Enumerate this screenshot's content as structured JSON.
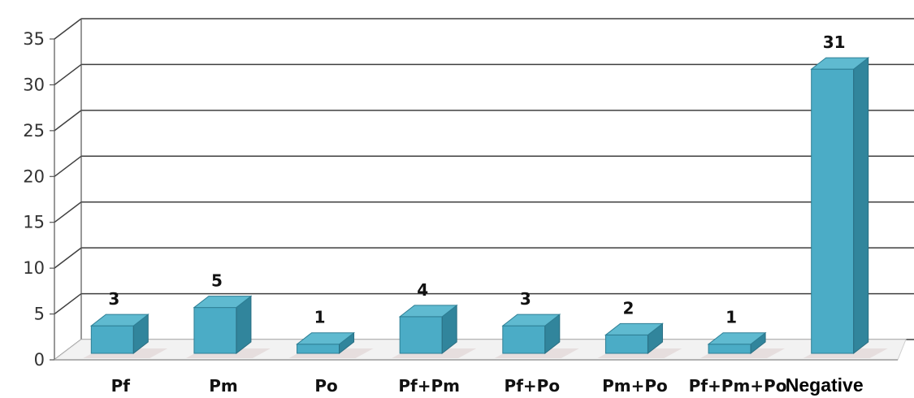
{
  "chart_data": {
    "type": "bar",
    "title": "",
    "xlabel": "",
    "ylabel": "",
    "categories": [
      "Pf",
      "Pm",
      "Po",
      "Pf+Pm",
      "Pf+Po",
      "Pm+Po",
      "Pf+Pm+Po",
      "Negative"
    ],
    "values": [
      3,
      5,
      1,
      4,
      3,
      2,
      1,
      31
    ],
    "ylim": [
      0,
      35
    ],
    "yticks": [
      0,
      5,
      10,
      15,
      20,
      25,
      30,
      35
    ],
    "grid": true,
    "legend": "none",
    "style": "3d-column",
    "colors": {
      "bar_front": "#4bacc6",
      "bar_top": "#5fbad0",
      "bar_side": "#31859c",
      "gridline": "#3f3f3f",
      "floor": "#d9d9d9"
    }
  }
}
